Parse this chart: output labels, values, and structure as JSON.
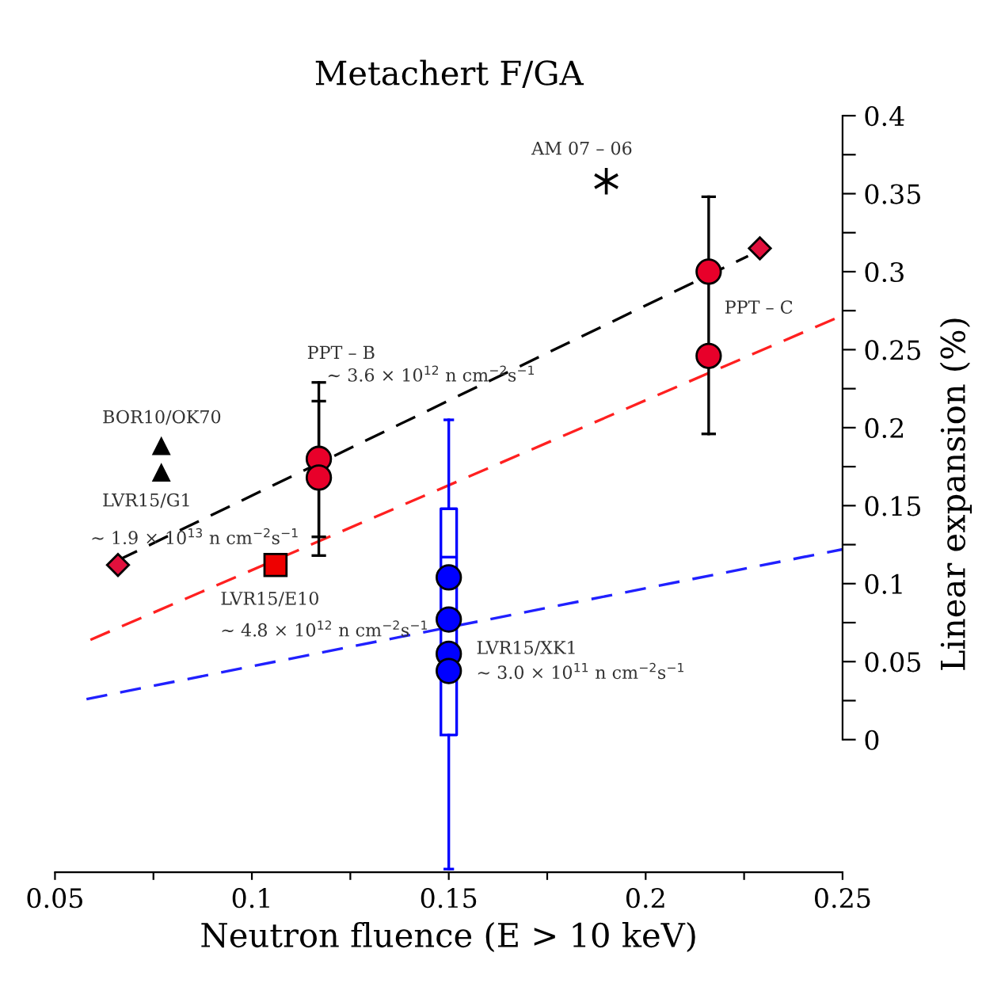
{
  "chart_data": {
    "type": "scatter",
    "title": "Metachert F/GA",
    "xlabel": "Neutron fluence (E > 10 keV)",
    "ylabel": "Linear expansion (%)",
    "xlim": [
      0.05,
      0.25
    ],
    "ylim": [
      -0.085,
      0.4
    ],
    "xticks": [
      0.05,
      {
        "value": 0.075,
        "label": null
      },
      0.1,
      {
        "value": 0.125,
        "label": null
      },
      0.15,
      {
        "value": 0.175,
        "label": null
      },
      0.2,
      {
        "value": 0.225,
        "label": null
      },
      0.25
    ],
    "yticks": [
      0,
      {
        "value": 0.025,
        "label": null
      },
      0.05,
      {
        "value": 0.075,
        "label": null
      },
      0.1,
      {
        "value": 0.125,
        "label": null
      },
      0.15,
      {
        "value": 0.175,
        "label": null
      },
      0.2,
      {
        "value": 0.225,
        "label": null
      },
      0.25,
      {
        "value": 0.275,
        "label": null
      },
      0.3,
      {
        "value": 0.325,
        "label": null
      },
      0.35,
      {
        "value": 0.375,
        "label": null
      },
      0.4
    ],
    "grid": false,
    "legend": false,
    "series": [
      {
        "type": "line",
        "color": "#000000",
        "line_style": "dashed",
        "marker": "none",
        "x": [
          0.066,
          0.226
        ],
        "values": [
          0.115,
          0.31
        ]
      },
      {
        "type": "line",
        "color": "#ff2020",
        "line_style": "dashed",
        "marker": "none",
        "x": [
          0.059,
          0.25
        ],
        "values": [
          0.064,
          0.272
        ]
      },
      {
        "type": "line",
        "color": "#2020ff",
        "line_style": "dashed",
        "marker": "none",
        "x": [
          0.058,
          0.25
        ],
        "values": [
          0.026,
          0.122
        ]
      },
      {
        "type": "box",
        "color": "#0000ff",
        "x": [
          0.15
        ],
        "boxes": [
          {
            "low": -0.083,
            "q1": 0.003,
            "median": 0.117,
            "q3": 0.148,
            "high": 0.205
          }
        ]
      },
      {
        "color": "#0000ff",
        "marker": "circle",
        "x": [
          0.15,
          0.15,
          0.15,
          0.15
        ],
        "values": [
          0.104,
          0.077,
          0.055,
          0.044
        ]
      },
      {
        "color": "#e8002a",
        "marker": "circle",
        "x": [
          0.117,
          0.117,
          0.216,
          0.216
        ],
        "values": [
          0.18,
          0.168,
          0.3,
          0.246
        ],
        "errors": [
          [
            0.13,
            0.229
          ],
          [
            0.118,
            0.217
          ],
          [
            0.196,
            0.348
          ],
          null
        ]
      },
      {
        "color": "#e0103c",
        "marker": "diamond",
        "x": [
          0.066,
          0.229
        ],
        "values": [
          0.112,
          0.315
        ]
      },
      {
        "color": "#ee0000",
        "marker": "square",
        "x": [
          0.106
        ],
        "values": [
          0.112
        ]
      },
      {
        "color": "#000000",
        "marker": "cross",
        "x": [
          0.19
        ],
        "values": [
          0.358
        ]
      },
      {
        "color": "#000000",
        "marker": "triangle",
        "x": [
          0.077,
          0.077
        ],
        "values": [
          0.188,
          0.171
        ]
      }
    ],
    "annotations": [
      "AM 07 – 06",
      "PPT – B",
      "∼ 3.6 × 10$^{12}$ n cm$^{−2}$s$^{−1}$",
      "PPT – C",
      "BOR10/OK70",
      "LVR15/G1",
      "∼ 1.9 × 10$^{13}$ n cm$^{−2}$s$^{−1}$",
      "LVR15/E10",
      "∼ 4.8 × 10$^{12}$ n cm$^{−2}$s$^{−1}$",
      "LVR15/XK1",
      "∼ 3.0 × 10$^{11}$ n cm$^{−2}$s$^{−1}$"
    ]
  }
}
